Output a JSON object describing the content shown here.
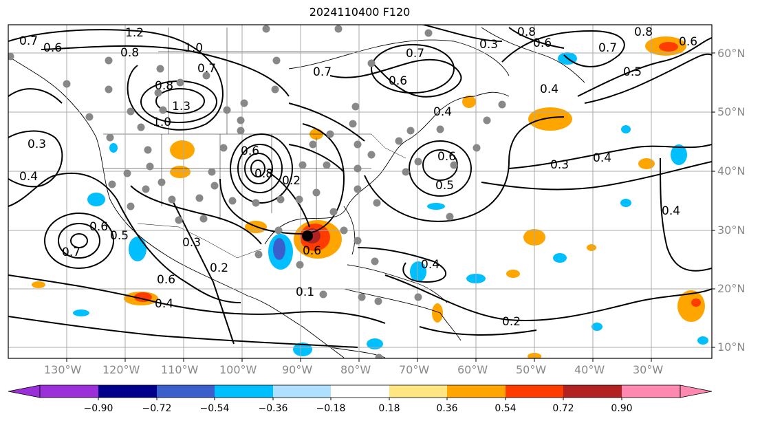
{
  "title": "2024110400 F120",
  "lon_labels": [
    "130°W",
    "120°W",
    "110°W",
    "100°W",
    "90°W",
    "80°W",
    "70°W",
    "60°W",
    "50°W",
    "40°W",
    "30°W"
  ],
  "lat_labels": [
    "60°N",
    "50°N",
    "40°N",
    "30°N",
    "20°N",
    "10°N"
  ],
  "colorbar": {
    "ticks": [
      "−0.90",
      "−0.72",
      "−0.54",
      "−0.36",
      "−0.18",
      "0.18",
      "0.36",
      "0.54",
      "0.72",
      "0.90"
    ],
    "colors": [
      "#9b30d8",
      "#00008b",
      "#3a5fcd",
      "#00bfff",
      "#b0e0ff",
      "#ffffff",
      "#ffe680",
      "#ffa500",
      "#ff3c00",
      "#b22222",
      "#ff88b0"
    ]
  },
  "contour_labels": [
    "0.7",
    "0.6",
    "1.2",
    "0.8",
    "1.0",
    "0.7",
    "0.8",
    "1.3",
    "1.0",
    "0.7",
    "0.6",
    "0.3",
    "0.8",
    "0.4",
    "0.7",
    "0.5",
    "0.6",
    "0.7",
    "0.3",
    "0.4",
    "0.4",
    "0.6",
    "0.5",
    "0.6",
    "0.8",
    "0.2",
    "0.6",
    "0.5",
    "0.3",
    "0.4",
    "0.4",
    "0.6",
    "0.7",
    "0.3",
    "0.2",
    "0.6",
    "0.4",
    "0.4",
    "0.2",
    "0.8",
    "0.6",
    "0.1"
  ],
  "colors": {
    "grid": "#aaaaaa",
    "contour": "#000000",
    "station": "#888888",
    "storm": "#000000"
  }
}
